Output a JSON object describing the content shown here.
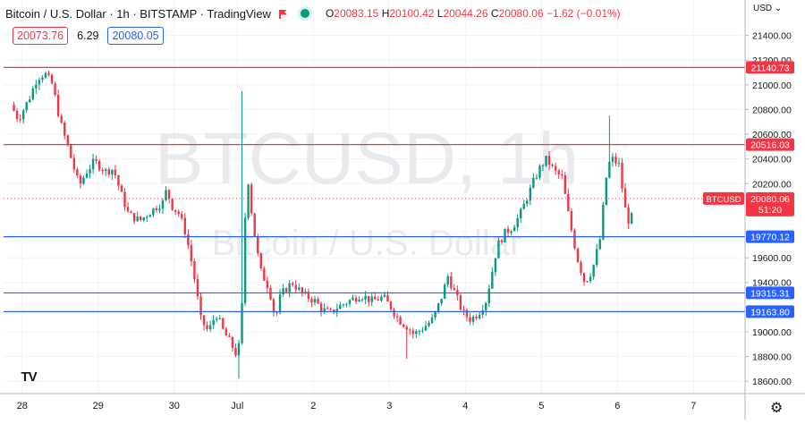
{
  "header": {
    "symbol_line": "Bitcoin / U.S. Dollar · 1h · BITSTAMP · TradingView",
    "o_label": "O",
    "o": "20083.15",
    "h_label": "H",
    "h": "20100.42",
    "l_label": "L",
    "l": "20044.26",
    "c_label": "C",
    "c": "20080.06",
    "change": "−1.62 (−0.01%)",
    "bid": "20073.76",
    "spread": "6.29",
    "ask": "20080.05"
  },
  "watermark": {
    "line1": "BTCUSD, 1h",
    "line2": "Bitcoin / U.S. Dollar"
  },
  "currency_label": "USD ⌄",
  "colors": {
    "up": "#089981",
    "down": "#f23645",
    "resistance": "#f23645",
    "support": "#2962ff",
    "grid": "#f0f3fa",
    "axis": "#b2b5be"
  },
  "chart_data": {
    "type": "candlestick",
    "title": "Bitcoin / U.S. Dollar · 1h · BITSTAMP",
    "ylim": [
      18500,
      21600
    ],
    "yticks": [
      21400,
      21200,
      21000,
      20800,
      20600,
      20400,
      20200,
      19600,
      19400,
      19000,
      18800,
      18600
    ],
    "xticks": [
      {
        "label": "28",
        "day": 0.15
      },
      {
        "label": "29",
        "day": 1.15
      },
      {
        "label": "30",
        "day": 2.15
      },
      {
        "label": "Jul",
        "day": 2.98
      },
      {
        "label": "2",
        "day": 3.98
      },
      {
        "label": "3",
        "day": 4.98
      },
      {
        "label": "4",
        "day": 5.98
      },
      {
        "label": "5",
        "day": 6.98
      },
      {
        "label": "6",
        "day": 7.98
      },
      {
        "label": "7",
        "day": 8.98
      }
    ],
    "horizontal_levels": [
      {
        "value": 21140.73,
        "label": "21140.73",
        "role": "resistance"
      },
      {
        "value": 20516.03,
        "label": "20516.03",
        "role": "resistance"
      },
      {
        "value": 19770.12,
        "label": "19770.12",
        "role": "support"
      },
      {
        "value": 19315.31,
        "label": "19315.31",
        "role": "support"
      },
      {
        "value": 19163.8,
        "label": "19163.80",
        "role": "support"
      }
    ],
    "last_price": {
      "symbol": "BTCUSD",
      "value": "20080.06",
      "countdown": "51:20"
    },
    "close_path": [
      [
        0.0,
        20840
      ],
      [
        0.1,
        20720
      ],
      [
        0.25,
        20900
      ],
      [
        0.35,
        21060
      ],
      [
        0.45,
        21090
      ],
      [
        0.55,
        21000
      ],
      [
        0.65,
        20700
      ],
      [
        0.75,
        20500
      ],
      [
        0.9,
        20180
      ],
      [
        1.0,
        20300
      ],
      [
        1.1,
        20380
      ],
      [
        1.25,
        20300
      ],
      [
        1.35,
        20320
      ],
      [
        1.45,
        20120
      ],
      [
        1.55,
        19950
      ],
      [
        1.7,
        19900
      ],
      [
        1.85,
        19980
      ],
      [
        2.0,
        20050
      ],
      [
        2.05,
        20150
      ],
      [
        2.12,
        20020
      ],
      [
        2.22,
        19950
      ],
      [
        2.3,
        19800
      ],
      [
        2.4,
        19500
      ],
      [
        2.5,
        19100
      ],
      [
        2.6,
        19000
      ],
      [
        2.7,
        19150
      ],
      [
        2.8,
        19000
      ],
      [
        2.9,
        18900
      ],
      [
        2.98,
        18800
      ],
      [
        3.03,
        19000
      ],
      [
        3.08,
        19900
      ],
      [
        3.12,
        20250
      ],
      [
        3.18,
        19900
      ],
      [
        3.28,
        19500
      ],
      [
        3.4,
        19350
      ],
      [
        3.48,
        19100
      ],
      [
        3.55,
        19300
      ],
      [
        3.7,
        19400
      ],
      [
        3.85,
        19300
      ],
      [
        4.0,
        19250
      ],
      [
        4.1,
        19180
      ],
      [
        4.2,
        19150
      ],
      [
        4.3,
        19200
      ],
      [
        4.45,
        19250
      ],
      [
        4.6,
        19300
      ],
      [
        4.75,
        19250
      ],
      [
        4.9,
        19280
      ],
      [
        5.0,
        19200
      ],
      [
        5.1,
        19100
      ],
      [
        5.2,
        19050
      ],
      [
        5.3,
        18980
      ],
      [
        5.4,
        19020
      ],
      [
        5.55,
        19100
      ],
      [
        5.65,
        19250
      ],
      [
        5.75,
        19450
      ],
      [
        5.85,
        19300
      ],
      [
        5.95,
        19150
      ],
      [
        6.05,
        19100
      ],
      [
        6.15,
        19150
      ],
      [
        6.25,
        19250
      ],
      [
        6.32,
        19450
      ],
      [
        6.4,
        19700
      ],
      [
        6.5,
        19800
      ],
      [
        6.6,
        19850
      ],
      [
        6.7,
        19950
      ],
      [
        6.8,
        20100
      ],
      [
        6.9,
        20250
      ],
      [
        6.98,
        20350
      ],
      [
        7.05,
        20400
      ],
      [
        7.15,
        20300
      ],
      [
        7.25,
        20250
      ],
      [
        7.35,
        19900
      ],
      [
        7.45,
        19600
      ],
      [
        7.55,
        19400
      ],
      [
        7.65,
        19500
      ],
      [
        7.75,
        19750
      ],
      [
        7.85,
        20350
      ],
      [
        7.92,
        20400
      ],
      [
        8.0,
        20350
      ],
      [
        8.08,
        20000
      ],
      [
        8.15,
        19850
      ],
      [
        8.2,
        20080
      ]
    ],
    "spikes": [
      {
        "day": 3.06,
        "high": 20950
      },
      {
        "day": 7.88,
        "high": 20750
      },
      {
        "day": 5.2,
        "low": 18780
      },
      {
        "day": 3.0,
        "low": 18620
      }
    ]
  }
}
